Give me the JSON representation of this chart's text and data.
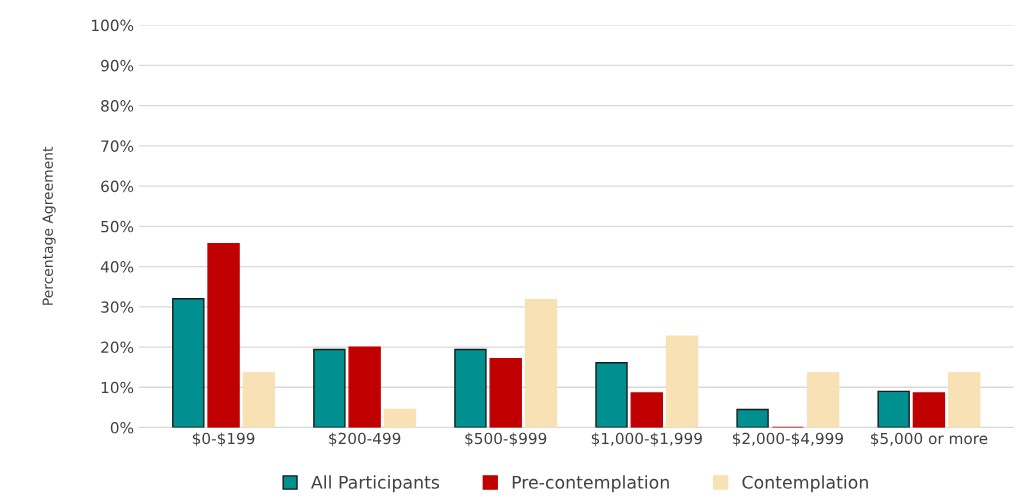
{
  "chart_data": {
    "type": "bar",
    "ylabel": "Percentage Agreement",
    "categories": [
      "$0-$199",
      "$200-499",
      "$500-$999",
      "$1,000-$1,999",
      "$2,000-$4,999",
      "$5,000 or more"
    ],
    "series": [
      {
        "name": "All Participants",
        "color": "#009090",
        "values": [
          32,
          19.4,
          19.4,
          16.1,
          4.5,
          9
        ]
      },
      {
        "name": "Pre-contemplation",
        "color": "#c00000",
        "values": [
          45.7,
          20,
          17.1,
          8.6,
          0,
          8.6
        ]
      },
      {
        "name": "Contemplation",
        "color": "#f7e1b5",
        "values": [
          13.6,
          4.5,
          31.8,
          22.7,
          13.6,
          13.6
        ]
      }
    ],
    "ylim": [
      0,
      100
    ],
    "yticks": [
      {
        "value": 0,
        "label": "0%"
      },
      {
        "value": 10,
        "label": "10%"
      },
      {
        "value": 20,
        "label": "20%"
      },
      {
        "value": 30,
        "label": "30%"
      },
      {
        "value": 40,
        "label": "40%"
      },
      {
        "value": 50,
        "label": "50%"
      },
      {
        "value": 60,
        "label": "60%"
      },
      {
        "value": 70,
        "label": "70%"
      },
      {
        "value": 80,
        "label": "80%"
      },
      {
        "value": 90,
        "label": "90%"
      },
      {
        "value": 100,
        "label": "100%"
      }
    ],
    "grid": "y",
    "legend": "bottom"
  }
}
